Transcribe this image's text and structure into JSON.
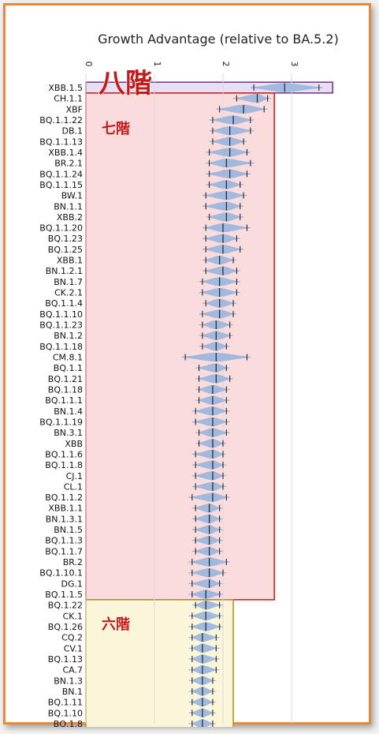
{
  "chart_data": {
    "type": "violin",
    "title": "Growth Advantage (relative to BA.5.2)",
    "xlim": [
      0,
      3.6
    ],
    "xticks": [
      0,
      1,
      2,
      3
    ],
    "grid": true,
    "colors": {
      "violin": "#9db8e0",
      "median": "#222222",
      "tier8_fill": "#e6e0f3",
      "tier8_edge": "#7d3b8f",
      "tier7_fill": "#fbdcdc",
      "tier7_edge": "#cc2222",
      "tier6_fill": "#fbf6d9",
      "tier6_edge": "#b89022",
      "tier_label": "#c31b1b"
    },
    "tiers": [
      {
        "label": "八階",
        "from": "XBB.1.5",
        "to": "XBB.1.5",
        "xmax": 3.6
      },
      {
        "label": "七階",
        "from": "CH.1.1",
        "to": "BQ.1.1.5",
        "xmax": 2.75
      },
      {
        "label": "六階",
        "from": "BQ.1.22",
        "to": "BQ.1.8",
        "xmax": 2.15
      }
    ],
    "categories": [
      "XBB.1.5",
      "CH.1.1",
      "XBF",
      "BQ.1.1.22",
      "DB.1",
      "BQ.1.1.13",
      "XBB.1.4",
      "BR.2.1",
      "BQ.1.1.24",
      "BQ.1.1.15",
      "BW.1",
      "BN.1.1",
      "XBB.2",
      "BQ.1.1.20",
      "BQ.1.23",
      "BQ.1.25",
      "XBB.1",
      "BN.1.2.1",
      "BN.1.7",
      "CK.2.1",
      "BQ.1.1.4",
      "BQ.1.1.10",
      "BQ.1.1.23",
      "BN.1.2",
      "BQ.1.1.18",
      "CM.8.1",
      "BQ.1.1",
      "BQ.1.21",
      "BQ.1.18",
      "BQ.1.1.1",
      "BN.1.4",
      "BQ.1.1.19",
      "BN.3.1",
      "XBB",
      "BQ.1.1.6",
      "BQ.1.1.8",
      "CJ.1",
      "CL.1",
      "BQ.1.1.2",
      "XBB.1.1",
      "BN.1.3.1",
      "BN.1.5",
      "BQ.1.1.3",
      "BQ.1.1.7",
      "BR.2",
      "BQ.1.10.1",
      "DG.1",
      "BQ.1.1.5",
      "BQ.1.22",
      "CK.1",
      "BQ.1.26",
      "CQ.2",
      "CV.1",
      "BQ.1.13",
      "CA.7",
      "BN.1.3",
      "BN.1",
      "BQ.1.11",
      "BQ.1.10",
      "BQ.1.8"
    ],
    "median": [
      2.9,
      2.5,
      2.3,
      2.15,
      2.1,
      2.1,
      2.1,
      2.05,
      2.1,
      2.05,
      2.05,
      2.05,
      2.05,
      2.0,
      2.0,
      2.0,
      1.95,
      2.0,
      1.95,
      1.95,
      1.95,
      1.95,
      1.9,
      1.9,
      1.9,
      1.9,
      1.9,
      1.9,
      1.85,
      1.85,
      1.85,
      1.85,
      1.85,
      1.85,
      1.85,
      1.85,
      1.85,
      1.85,
      1.85,
      1.8,
      1.8,
      1.8,
      1.8,
      1.8,
      1.8,
      1.8,
      1.8,
      1.75,
      1.75,
      1.75,
      1.75,
      1.7,
      1.7,
      1.7,
      1.7,
      1.7,
      1.7,
      1.7,
      1.7,
      1.7
    ],
    "ci_low": [
      2.45,
      2.2,
      1.95,
      1.85,
      1.85,
      1.85,
      1.8,
      1.8,
      1.8,
      1.8,
      1.75,
      1.75,
      1.8,
      1.75,
      1.75,
      1.75,
      1.75,
      1.75,
      1.7,
      1.7,
      1.75,
      1.7,
      1.7,
      1.7,
      1.7,
      1.45,
      1.65,
      1.65,
      1.65,
      1.65,
      1.6,
      1.6,
      1.65,
      1.65,
      1.6,
      1.6,
      1.6,
      1.6,
      1.55,
      1.6,
      1.6,
      1.6,
      1.6,
      1.6,
      1.55,
      1.55,
      1.55,
      1.55,
      1.6,
      1.55,
      1.55,
      1.55,
      1.55,
      1.55,
      1.55,
      1.55,
      1.55,
      1.55,
      1.55,
      1.55
    ],
    "ci_high": [
      3.4,
      2.65,
      2.6,
      2.4,
      2.4,
      2.3,
      2.35,
      2.4,
      2.35,
      2.25,
      2.3,
      2.25,
      2.25,
      2.35,
      2.2,
      2.25,
      2.15,
      2.2,
      2.2,
      2.2,
      2.15,
      2.15,
      2.1,
      2.1,
      2.05,
      2.35,
      2.05,
      2.1,
      2.05,
      2.05,
      2.05,
      2.05,
      2.05,
      2.0,
      2.0,
      2.0,
      2.0,
      2.0,
      2.05,
      1.95,
      1.95,
      1.95,
      1.95,
      1.95,
      2.05,
      2.0,
      1.95,
      1.95,
      1.95,
      1.95,
      1.95,
      1.9,
      1.9,
      1.9,
      1.9,
      1.85,
      1.85,
      1.85,
      1.85,
      1.85
    ]
  }
}
